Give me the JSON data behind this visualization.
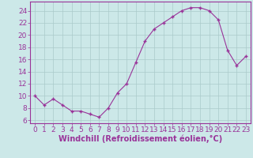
{
  "x": [
    0,
    1,
    2,
    3,
    4,
    5,
    6,
    7,
    8,
    9,
    10,
    11,
    12,
    13,
    14,
    15,
    16,
    17,
    18,
    19,
    20,
    21,
    22,
    23
  ],
  "y": [
    10,
    8.5,
    9.5,
    8.5,
    7.5,
    7.5,
    7.0,
    6.5,
    8.0,
    10.5,
    12.0,
    15.5,
    19.0,
    21.0,
    22.0,
    23.0,
    24.0,
    24.5,
    24.5,
    24.0,
    22.5,
    17.5,
    15.0,
    16.5
  ],
  "line_color": "#993399",
  "marker_color": "#993399",
  "bg_color": "#cce8e8",
  "grid_color": "#aacaca",
  "axis_color": "#993399",
  "tick_color": "#993399",
  "xlabel": "Windchill (Refroidissement éolien,°C)",
  "xlim": [
    -0.5,
    23.5
  ],
  "ylim": [
    5.5,
    25.5
  ],
  "yticks": [
    6,
    8,
    10,
    12,
    14,
    16,
    18,
    20,
    22,
    24
  ],
  "xticks": [
    0,
    1,
    2,
    3,
    4,
    5,
    6,
    7,
    8,
    9,
    10,
    11,
    12,
    13,
    14,
    15,
    16,
    17,
    18,
    19,
    20,
    21,
    22,
    23
  ],
  "tick_font_size": 6.5,
  "label_font_size": 7.0
}
